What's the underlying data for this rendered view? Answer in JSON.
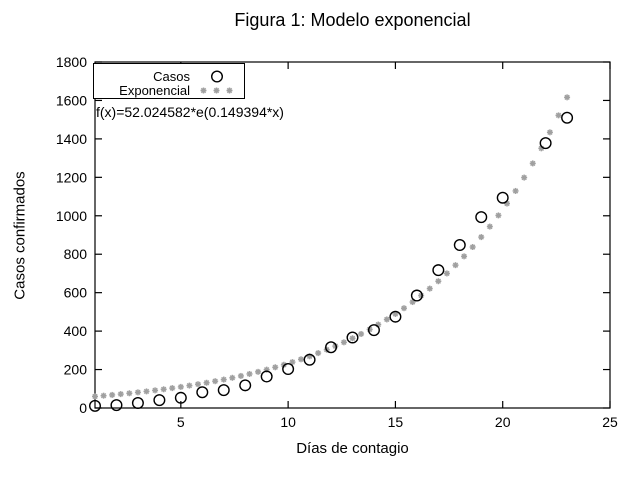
{
  "chart_data": {
    "type": "scatter",
    "title": "Figura 1: Modelo exponencial",
    "xlabel": "Días de contagio",
    "ylabel": "Casos confirmados",
    "annotation": "f(x)=52.024582*e(0.149394*x)",
    "grid": false,
    "legend_position": "top-left",
    "axes": {
      "xlim": [
        1,
        25
      ],
      "ylim": [
        0,
        1800
      ],
      "x_ticks": [
        5,
        10,
        15,
        20,
        25
      ],
      "y_ticks": [
        0,
        200,
        400,
        600,
        800,
        1000,
        1200,
        1400,
        1600,
        1800
      ]
    },
    "series": [
      {
        "name": "Casos",
        "marker": "circle",
        "color": "#000000",
        "x": [
          1,
          2,
          3,
          4,
          5,
          6,
          7,
          8,
          9,
          10,
          11,
          12,
          13,
          14,
          15,
          16,
          17,
          18,
          19,
          20,
          22,
          23
        ],
        "y": [
          11,
          15,
          26,
          41,
          53,
          82,
          93,
          118,
          164,
          203,
          251,
          316,
          367,
          405,
          475,
          585,
          717,
          848,
          993,
          1094,
          1378,
          1510
        ]
      },
      {
        "name": "Exponencial",
        "marker": "asterisk",
        "color": "#a0a0a0",
        "model": {
          "formula": "f(x)=52.024582*e(0.149394*x)",
          "a": 52.024582,
          "b": 0.149394,
          "x_start": 1,
          "x_end": 23,
          "x_step": 0.4
        }
      }
    ]
  }
}
